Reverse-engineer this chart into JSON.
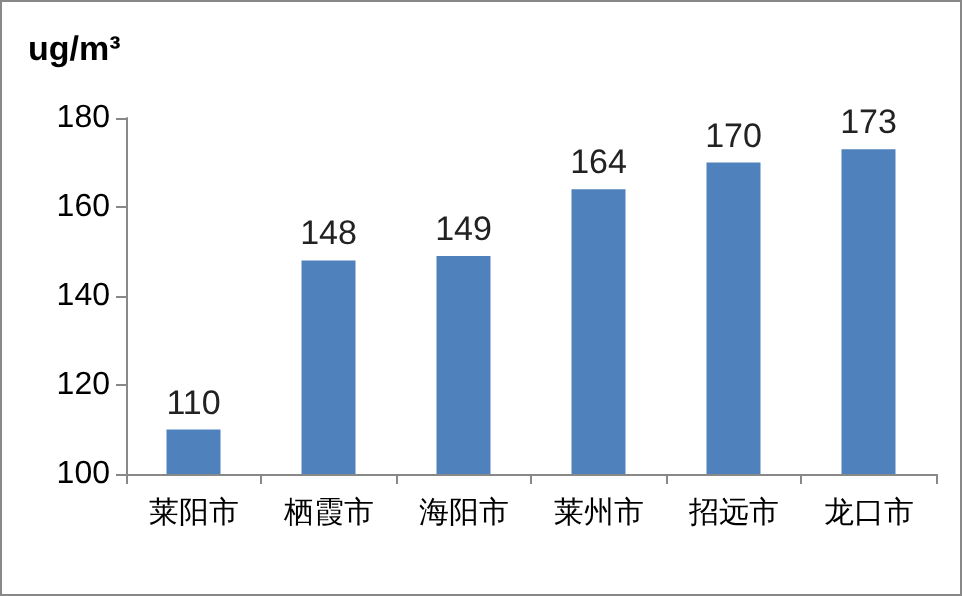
{
  "chart_data": {
    "type": "bar",
    "ylabel": "ug/m³",
    "categories": [
      "莱阳市",
      "栖霞市",
      "海阳市",
      "莱州市",
      "招远市",
      "龙口市"
    ],
    "values": [
      110,
      148,
      149,
      164,
      170,
      173
    ],
    "color": "#4f81bd",
    "ylim": [
      100,
      180
    ],
    "yticks": [
      100,
      120,
      140,
      160,
      180
    ],
    "grid": false,
    "data_labels": true
  }
}
